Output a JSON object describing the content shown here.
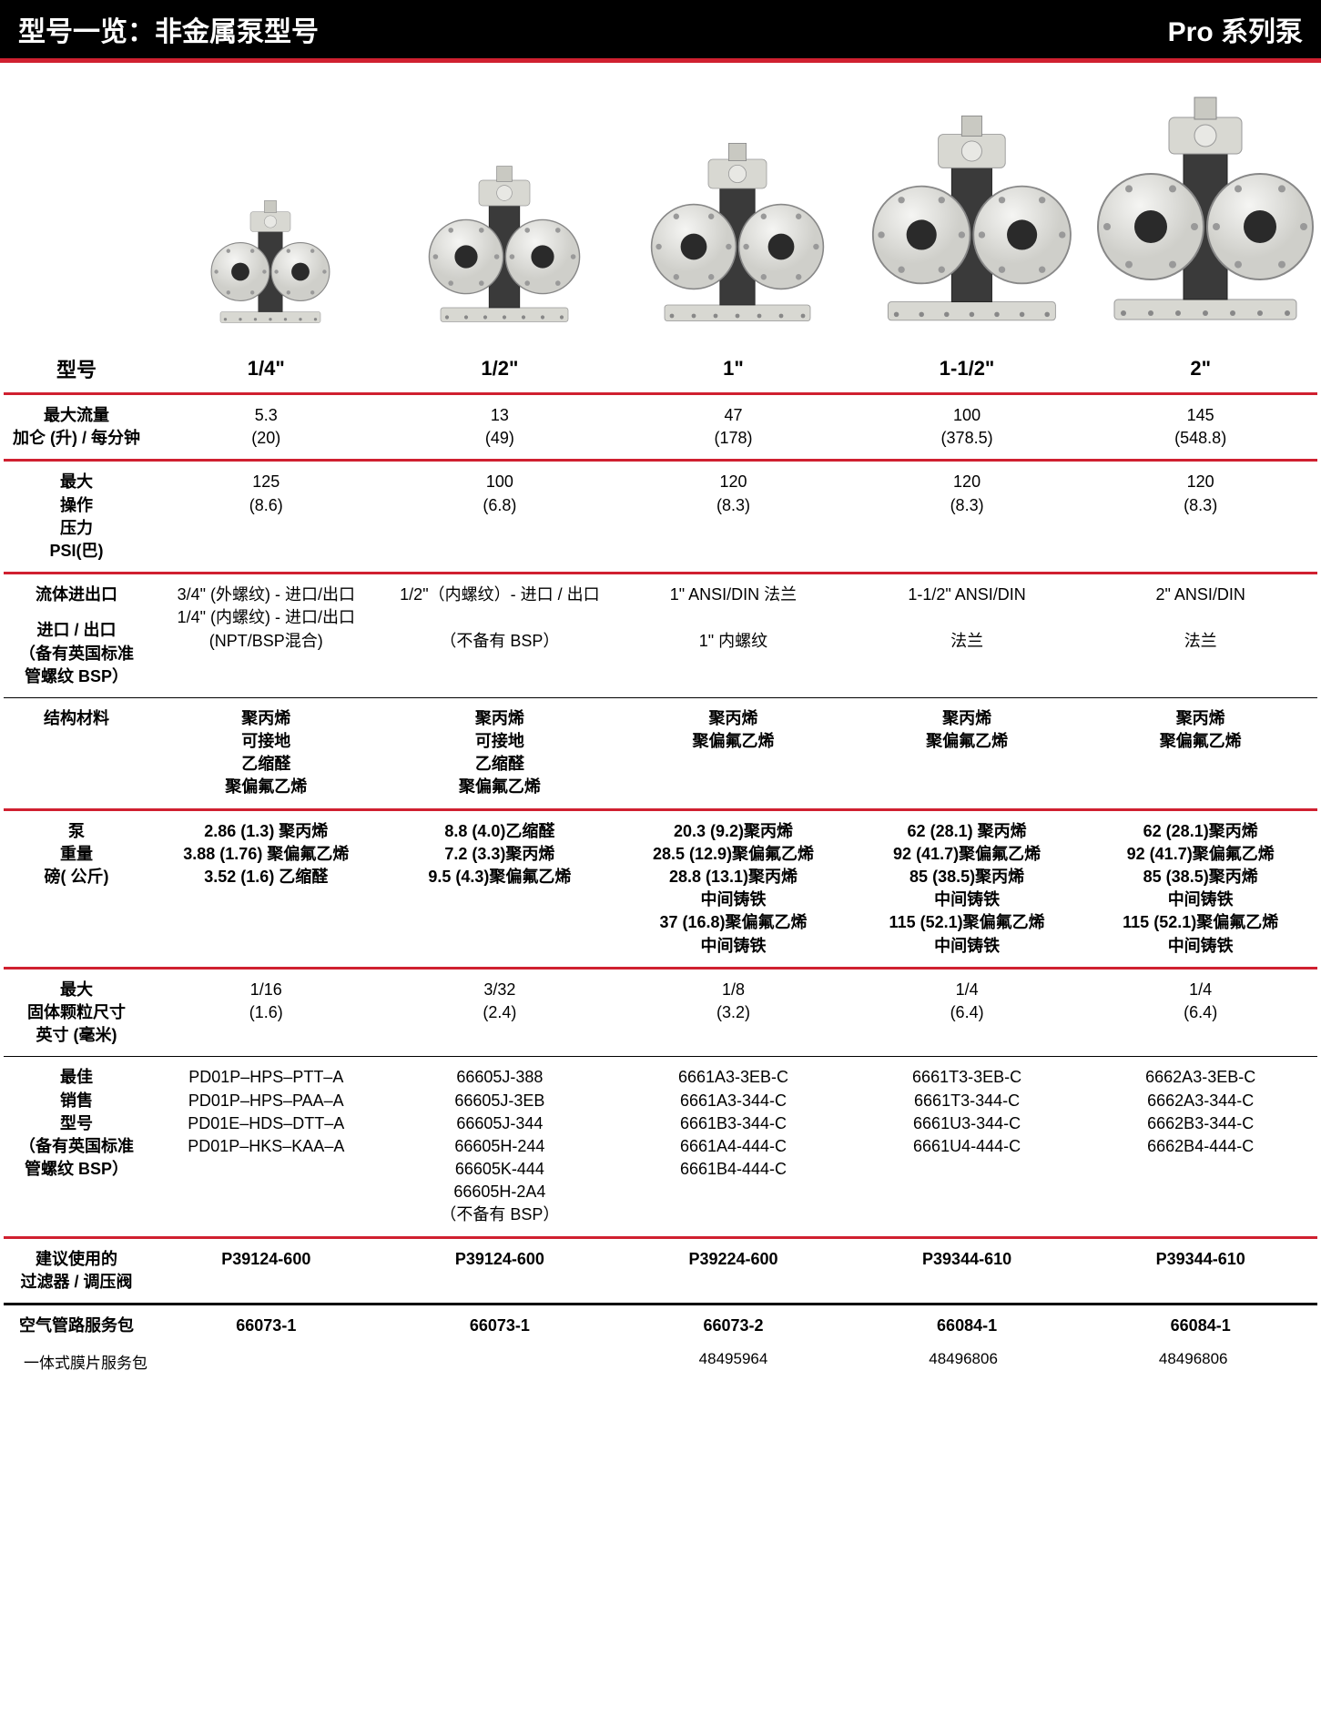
{
  "header": {
    "left": "型号一览：非金属泵型号",
    "right": "Pro 系列泵"
  },
  "columns": [
    "1/4\"",
    "1/2\"",
    "1\"",
    "1-1/2\"",
    "2\""
  ],
  "colLabel": "型号",
  "rows": {
    "flow": {
      "label": "最大流量\n加仑 (升) / 每分钟",
      "v": [
        "5.3\n(20)",
        "13\n(49)",
        "47\n(178)",
        "100\n(378.5)",
        "145\n(548.8)"
      ]
    },
    "pressure": {
      "label": "最大\n操作\n压力\nPSI(巴)",
      "v": [
        "125\n(8.6)",
        "100\n(6.8)",
        "120\n(8.3)",
        "120\n(8.3)",
        "120\n(8.3)"
      ]
    },
    "fluid": {
      "label1": "流体进出口",
      "label2": "进口 / 出口\n（备有英国标准\n管螺纹 BSP）",
      "v": [
        "3/4\" (外螺纹) - 进口/出口\n1/4\" (内螺纹) - 进口/出口\n(NPT/BSP混合)",
        "1/2\"（内螺纹）- 进口 / 出口\n\n（不备有 BSP）",
        "1\" ANSI/DIN 法兰\n\n1\" 内螺纹",
        "1-1/2\" ANSI/DIN\n\n法兰",
        "2\" ANSI/DIN\n\n法兰"
      ]
    },
    "material": {
      "label": "结构材料",
      "v": [
        "聚丙烯\n可接地\n乙缩醛\n聚偏氟乙烯",
        "聚丙烯\n可接地\n乙缩醛\n聚偏氟乙烯",
        "聚丙烯\n聚偏氟乙烯",
        "聚丙烯\n聚偏氟乙烯",
        "聚丙烯\n聚偏氟乙烯"
      ]
    },
    "weight": {
      "label": "泵\n重量\n磅( 公斤)",
      "v": [
        "2.86 (1.3) 聚丙烯\n3.88 (1.76) 聚偏氟乙烯\n3.52 (1.6) 乙缩醛",
        "8.8 (4.0)乙缩醛\n7.2 (3.3)聚丙烯\n9.5 (4.3)聚偏氟乙烯",
        "20.3 (9.2)聚丙烯\n28.5 (12.9)聚偏氟乙烯\n28.8 (13.1)聚丙烯\n中间铸铁\n37 (16.8)聚偏氟乙烯\n中间铸铁",
        "62 (28.1) 聚丙烯\n92 (41.7)聚偏氟乙烯\n85 (38.5)聚丙烯\n中间铸铁\n115 (52.1)聚偏氟乙烯\n中间铸铁",
        "62 (28.1)聚丙烯\n92 (41.7)聚偏氟乙烯\n85 (38.5)聚丙烯\n中间铸铁\n115 (52.1)聚偏氟乙烯\n中间铸铁"
      ]
    },
    "solids": {
      "label": "最大\n固体颗粒尺寸\n英寸 (毫米)",
      "v": [
        "1/16\n(1.6)",
        "3/32\n(2.4)",
        "1/8\n(3.2)",
        "1/4\n(6.4)",
        "1/4\n(6.4)"
      ]
    },
    "models": {
      "label": "最佳\n销售\n型号\n（备有英国标准\n管螺纹 BSP）",
      "v": [
        "PD01P–HPS–PTT–A\nPD01P–HPS–PAA–A\nPD01E–HDS–DTT–A\nPD01P–HKS–KAA–A",
        "66605J-388\n66605J-3EB\n66605J-344\n66605H-244\n66605K-444\n66605H-2A4\n（不备有 BSP）",
        "6661A3-3EB-C\n6661A3-344-C\n6661B3-344-C\n6661A4-444-C\n6661B4-444-C",
        "6661T3-3EB-C\n6661T3-344-C\n6661U3-344-C\n6661U4-444-C",
        "6662A3-3EB-C\n6662A3-344-C\n6662B3-344-C\n6662B4-444-C"
      ]
    },
    "filter": {
      "label": "建议使用的\n过滤器 / 调压阀",
      "v": [
        "P39124-600",
        "P39124-600",
        "P39224-600",
        "P39344-610",
        "P39344-610"
      ]
    },
    "airline": {
      "label": "空气管路服务包",
      "v": [
        "66073-1",
        "66073-1",
        "66073-2",
        "66084-1",
        "66084-1"
      ]
    },
    "diaphragm": {
      "label": "一体式膜片服务包",
      "v": [
        "",
        "",
        "48495964",
        "48496806",
        "48496806"
      ]
    }
  },
  "pumps": [
    {
      "scale": 0.55
    },
    {
      "scale": 0.7
    },
    {
      "scale": 0.8
    },
    {
      "scale": 0.92
    },
    {
      "scale": 1.0
    }
  ],
  "colors": {
    "red": "#d02030",
    "black": "#000000"
  }
}
